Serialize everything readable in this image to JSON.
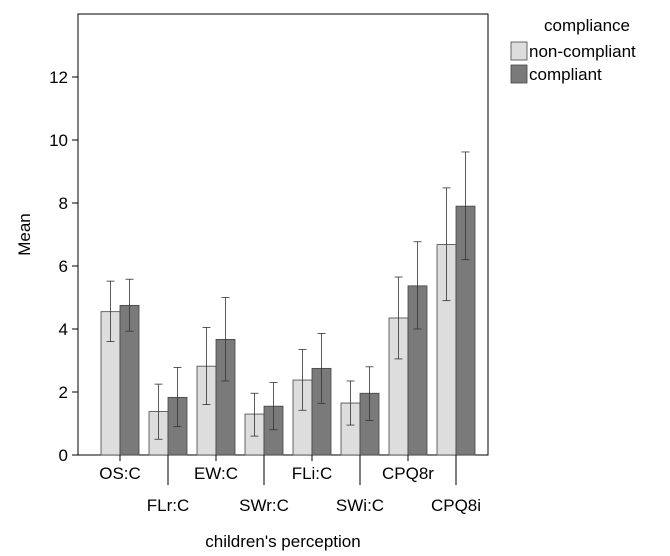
{
  "chart_data": {
    "type": "bar",
    "categories": [
      "OS:C",
      "FLr:C",
      "EW:C",
      "SWr:C",
      "FLi:C",
      "SWi:C",
      "CPQ8r",
      "CPQ8i"
    ],
    "xlabel": "children's perception",
    "ylabel": "Mean",
    "ylim": [
      0,
      14
    ],
    "yticks": [
      0,
      2,
      4,
      6,
      8,
      10,
      12
    ],
    "grid": false,
    "error_bars": true,
    "legend": {
      "title": "compliance",
      "position": "top-right"
    },
    "series": [
      {
        "name": "non-compliant",
        "color": "#dddddd",
        "values": [
          4.55,
          1.38,
          2.82,
          1.3,
          2.38,
          1.65,
          4.35,
          6.68
        ],
        "err_low": [
          3.6,
          0.5,
          1.6,
          0.6,
          1.42,
          0.95,
          3.05,
          4.9
        ],
        "err_high": [
          5.52,
          2.25,
          4.05,
          1.96,
          3.35,
          2.35,
          5.65,
          8.48
        ]
      },
      {
        "name": "compliant",
        "color": "#7a7a7a",
        "values": [
          4.75,
          1.83,
          3.67,
          1.55,
          2.75,
          1.96,
          5.37,
          7.9
        ],
        "err_low": [
          3.93,
          0.9,
          2.35,
          0.8,
          1.64,
          1.1,
          4.0,
          6.2
        ],
        "err_high": [
          5.58,
          2.78,
          5.0,
          2.3,
          3.86,
          2.8,
          6.77,
          9.62
        ]
      }
    ]
  }
}
